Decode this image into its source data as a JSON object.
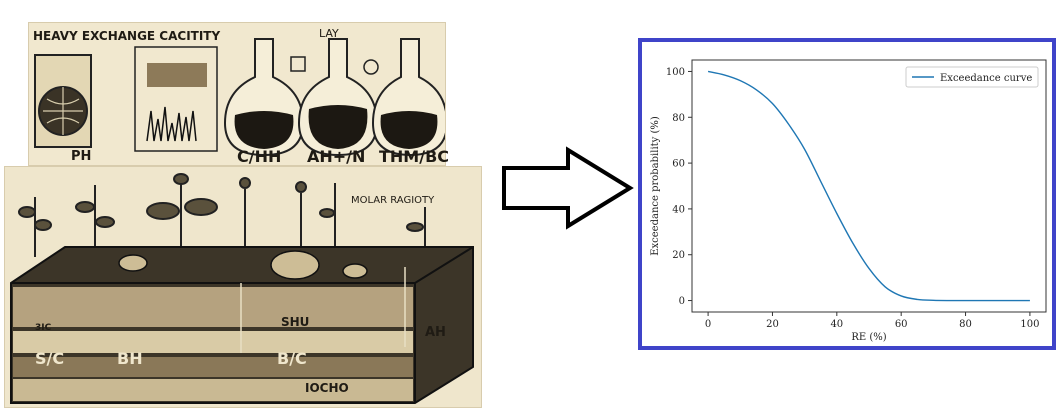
{
  "lab_illustration": {
    "title": "HEAVY EXCHANGE CACITITY",
    "right_title": "LAY",
    "labels": [
      "PH",
      "C/HH",
      "AH+/N",
      "THM/BC"
    ]
  },
  "soil_illustration": {
    "title": "MOLAR RAGIOTY",
    "layer_labels": [
      "S/C",
      "BH",
      "B/C",
      "SHU",
      "AH",
      "3IC",
      "IOCHO"
    ]
  },
  "chart_data": {
    "type": "line",
    "title": "",
    "xlabel": "RE (%)",
    "ylabel": "Exceedance probability (%)",
    "xlim": [
      -5,
      105
    ],
    "ylim": [
      -5,
      105
    ],
    "xticks": [
      0,
      20,
      40,
      60,
      80,
      100
    ],
    "yticks": [
      0,
      20,
      40,
      60,
      80,
      100
    ],
    "legend_position": "top-right",
    "series": [
      {
        "name": "Exceedance  curve",
        "color": "#1f77b4",
        "x": [
          0,
          5,
          10,
          15,
          20,
          25,
          30,
          35,
          40,
          45,
          50,
          55,
          60,
          65,
          70,
          75,
          80,
          90,
          100
        ],
        "values": [
          100,
          98.5,
          96,
          92,
          86,
          77,
          66,
          52,
          38,
          25,
          14,
          6,
          2,
          0.5,
          0.1,
          0,
          0,
          0,
          0
        ]
      }
    ]
  }
}
